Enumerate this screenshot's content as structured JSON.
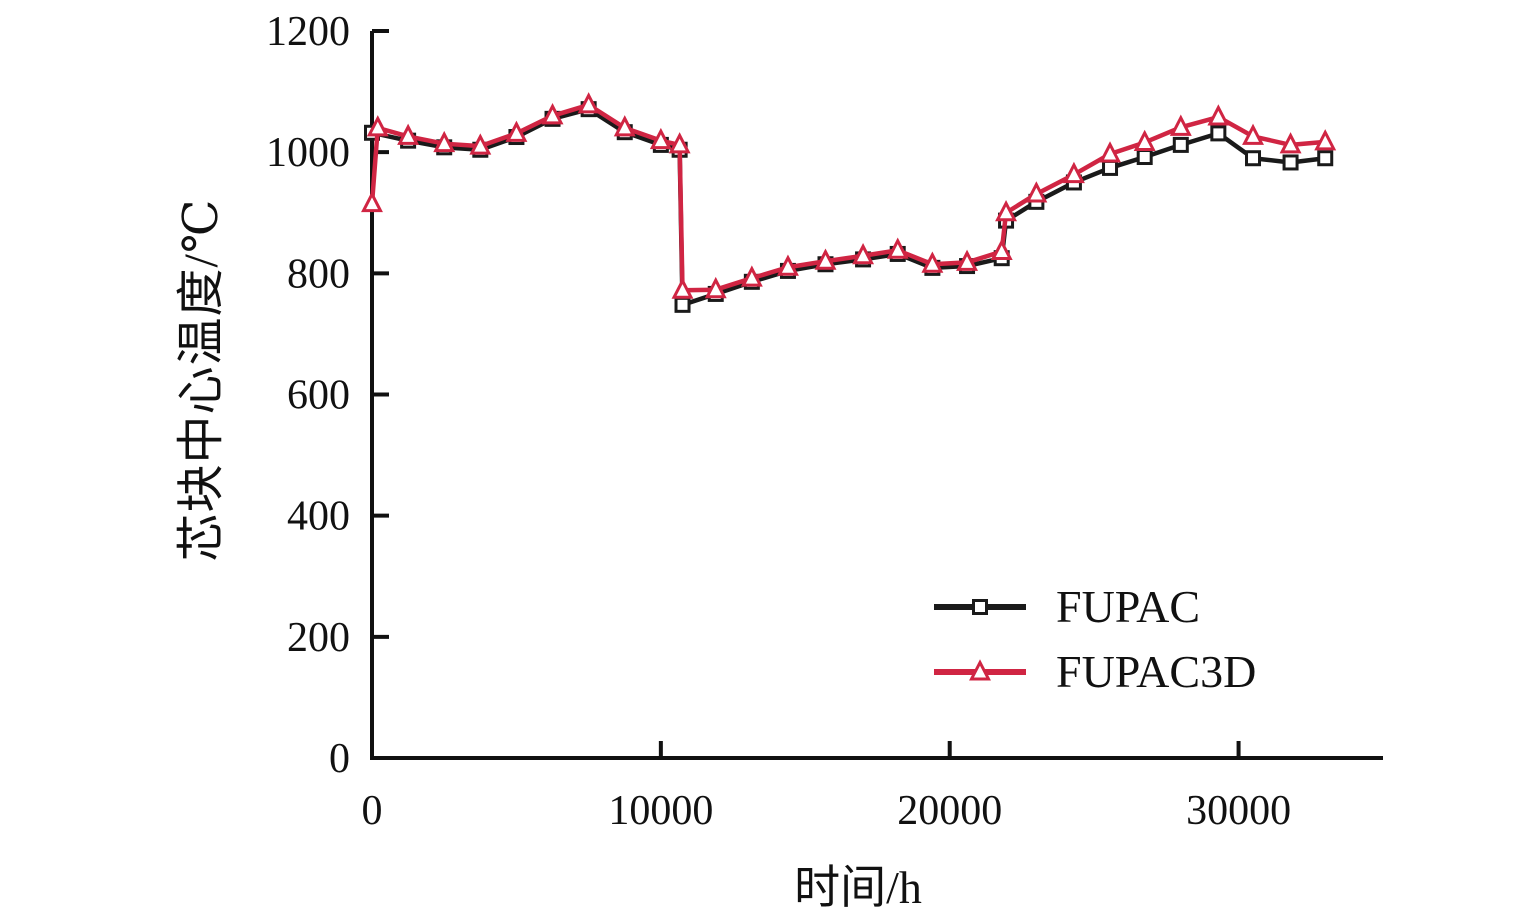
{
  "figure": {
    "x_axis_title": "时间/h",
    "y_axis_title": "芯块中心温度/℃"
  },
  "legend": {
    "entries": [
      {
        "label": "FUPAC"
      },
      {
        "label": "FUPAC3D"
      }
    ]
  },
  "chart_data": {
    "type": "line",
    "title": "",
    "xlabel": "时间/h",
    "ylabel": "芯块中心温度/℃",
    "xlim": [
      0,
      35000
    ],
    "ylim": [
      0,
      1200
    ],
    "x_ticks": [
      0,
      10000,
      20000,
      30000
    ],
    "y_ticks": [
      0,
      200,
      400,
      600,
      800,
      1000,
      1200
    ],
    "grid": false,
    "legend_position": "inside lower right",
    "series": [
      {
        "name": "FUPAC",
        "color": "#1a1a1a",
        "marker": "square",
        "x": [
          0,
          1250,
          2500,
          3750,
          5000,
          6250,
          7500,
          8750,
          10000,
          10650,
          10750,
          11900,
          13150,
          14400,
          15700,
          17000,
          18200,
          19400,
          20600,
          21800,
          21950,
          23000,
          24300,
          25550,
          26750,
          28000,
          29300,
          30500,
          31800,
          33000
        ],
        "y": [
          1032,
          1019,
          1008,
          1004,
          1025,
          1055,
          1071,
          1033,
          1012,
          1004,
          748,
          766,
          786,
          804,
          815,
          823,
          832,
          809,
          812,
          825,
          887,
          918,
          950,
          974,
          992,
          1012,
          1031,
          990,
          983,
          990
        ]
      },
      {
        "name": "FUPAC3D",
        "color": "#d02543",
        "marker": "triangle",
        "x": [
          0,
          200,
          1250,
          2500,
          3750,
          5000,
          6250,
          7500,
          8750,
          10000,
          10650,
          10750,
          11900,
          13150,
          14400,
          15700,
          17000,
          18200,
          19400,
          20600,
          21800,
          21950,
          23000,
          24300,
          25550,
          26750,
          28000,
          29300,
          30500,
          31800,
          33000
        ],
        "y": [
          915,
          1040,
          1026,
          1014,
          1010,
          1031,
          1060,
          1078,
          1040,
          1019,
          1012,
          772,
          773,
          792,
          810,
          820,
          829,
          838,
          815,
          818,
          836,
          900,
          931,
          963,
          997,
          1016,
          1041,
          1058,
          1026,
          1012,
          1017
        ]
      }
    ]
  }
}
